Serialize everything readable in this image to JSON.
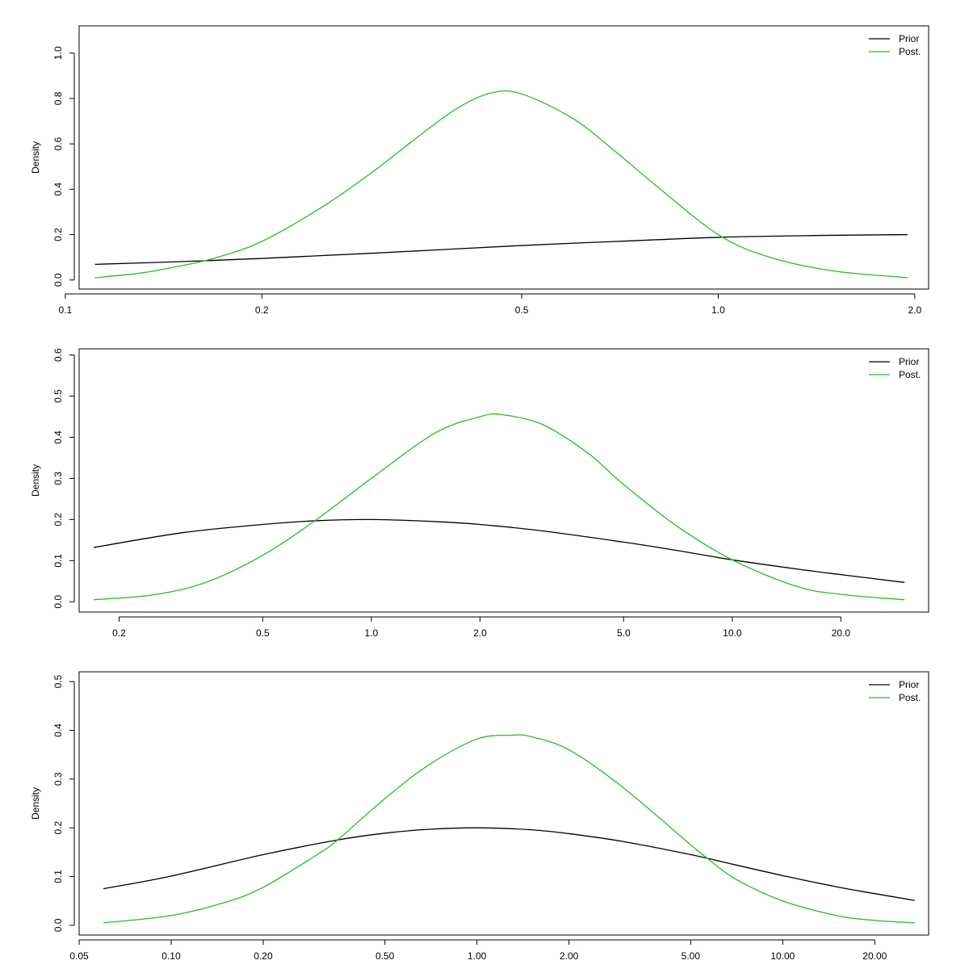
{
  "chart_data": [
    {
      "type": "line",
      "title": "",
      "xlabel": "",
      "ylabel": "Density",
      "x_scale": "log",
      "xlim": [
        0.105,
        2.1
      ],
      "ylim": [
        -0.04,
        1.12
      ],
      "x_ticks": [
        0.1,
        0.2,
        0.5,
        1.0,
        2.0
      ],
      "x_tick_labels": [
        "0.1",
        "0.2",
        "0.5",
        "1.0",
        "2.0"
      ],
      "y_ticks": [
        0,
        0.2,
        0.4,
        0.6,
        0.8,
        1.0
      ],
      "y_tick_labels": [
        "0.0",
        "0.2",
        "0.4",
        "0.6",
        "0.8",
        "1.0"
      ],
      "legend": "top-right",
      "series": [
        {
          "name": "Prior",
          "color": "#000000",
          "x": [
            0.111,
            0.15,
            0.2,
            0.3,
            0.5,
            0.7,
            1.0,
            1.4,
            1.95
          ],
          "y": [
            0.069,
            0.081,
            0.095,
            0.119,
            0.152,
            0.17,
            0.188,
            0.196,
            0.2
          ]
        },
        {
          "name": "Post.",
          "color": "#22c022",
          "x": [
            0.111,
            0.13,
            0.15,
            0.17,
            0.2,
            0.25,
            0.3,
            0.35,
            0.4,
            0.45,
            0.5,
            0.6,
            0.7,
            0.8,
            1.0,
            1.2,
            1.5,
            1.95
          ],
          "y": [
            0.01,
            0.03,
            0.062,
            0.098,
            0.17,
            0.33,
            0.49,
            0.64,
            0.76,
            0.825,
            0.82,
            0.71,
            0.56,
            0.42,
            0.2,
            0.1,
            0.04,
            0.01
          ]
        }
      ]
    },
    {
      "type": "line",
      "title": "",
      "xlabel": "",
      "ylabel": "Density",
      "x_scale": "log",
      "xlim": [
        0.155,
        35
      ],
      "ylim": [
        -0.025,
        0.615
      ],
      "x_ticks": [
        0.2,
        0.5,
        1.0,
        2.0,
        5.0,
        10.0,
        20.0
      ],
      "x_tick_labels": [
        "0.2",
        "0.5",
        "1.0",
        "2.0",
        "5.0",
        "10.0",
        "20.0"
      ],
      "y_ticks": [
        0,
        0.1,
        0.2,
        0.3,
        0.4,
        0.5,
        0.6
      ],
      "y_tick_labels": [
        "0.0",
        "0.1",
        "0.2",
        "0.3",
        "0.4",
        "0.5",
        "0.6"
      ],
      "legend": "top-right",
      "series": [
        {
          "name": "Prior",
          "color": "#000000",
          "x": [
            0.17,
            0.3,
            0.5,
            0.7,
            1.0,
            1.5,
            2.0,
            3.0,
            5.0,
            7.0,
            10.0,
            15.0,
            20.0,
            30.0
          ],
          "y": [
            0.132,
            0.168,
            0.188,
            0.197,
            0.2,
            0.195,
            0.188,
            0.172,
            0.145,
            0.125,
            0.102,
            0.08,
            0.066,
            0.047
          ]
        },
        {
          "name": "Post.",
          "color": "#22c022",
          "x": [
            0.17,
            0.25,
            0.35,
            0.5,
            0.7,
            1.0,
            1.5,
            2.0,
            2.3,
            3.0,
            4.0,
            5.0,
            7.0,
            10.0,
            15.0,
            20.0,
            30.0
          ],
          "y": [
            0.005,
            0.017,
            0.048,
            0.113,
            0.198,
            0.3,
            0.41,
            0.45,
            0.455,
            0.43,
            0.36,
            0.285,
            0.185,
            0.102,
            0.038,
            0.018,
            0.005
          ]
        }
      ]
    },
    {
      "type": "line",
      "title": "",
      "xlabel": "",
      "ylabel": "Density",
      "x_scale": "log",
      "xlim": [
        0.05,
        30
      ],
      "ylim": [
        -0.02,
        0.52
      ],
      "x_ticks": [
        0.05,
        0.1,
        0.2,
        0.5,
        1.0,
        2.0,
        5.0,
        10.0,
        20.0
      ],
      "x_tick_labels": [
        "0.05",
        "0.10",
        "0.20",
        "0.50",
        "1.00",
        "2.00",
        "5.00",
        "10.00",
        "20.00"
      ],
      "y_ticks": [
        0,
        0.1,
        0.2,
        0.3,
        0.4,
        0.5
      ],
      "y_tick_labels": [
        "0.0",
        "0.1",
        "0.2",
        "0.3",
        "0.4",
        "0.5"
      ],
      "legend": "top-right",
      "series": [
        {
          "name": "Prior",
          "color": "#000000",
          "x": [
            0.06,
            0.1,
            0.2,
            0.35,
            0.5,
            0.7,
            1.0,
            1.5,
            2.0,
            3.0,
            5.0,
            7.0,
            10.0,
            15.0,
            20.0,
            27.0
          ],
          "y": [
            0.075,
            0.101,
            0.145,
            0.175,
            0.189,
            0.197,
            0.2,
            0.196,
            0.188,
            0.172,
            0.145,
            0.124,
            0.102,
            0.079,
            0.065,
            0.051
          ]
        },
        {
          "name": "Post.",
          "color": "#22c022",
          "x": [
            0.06,
            0.1,
            0.15,
            0.2,
            0.3,
            0.35,
            0.5,
            0.7,
            1.0,
            1.3,
            1.5,
            2.0,
            3.0,
            5.0,
            5.6,
            7.0,
            10.0,
            15.0,
            20.0,
            27.0
          ],
          "y": [
            0.005,
            0.02,
            0.047,
            0.078,
            0.145,
            0.175,
            0.26,
            0.33,
            0.382,
            0.39,
            0.387,
            0.36,
            0.283,
            0.165,
            0.14,
            0.095,
            0.05,
            0.02,
            0.01,
            0.005
          ]
        }
      ]
    }
  ]
}
